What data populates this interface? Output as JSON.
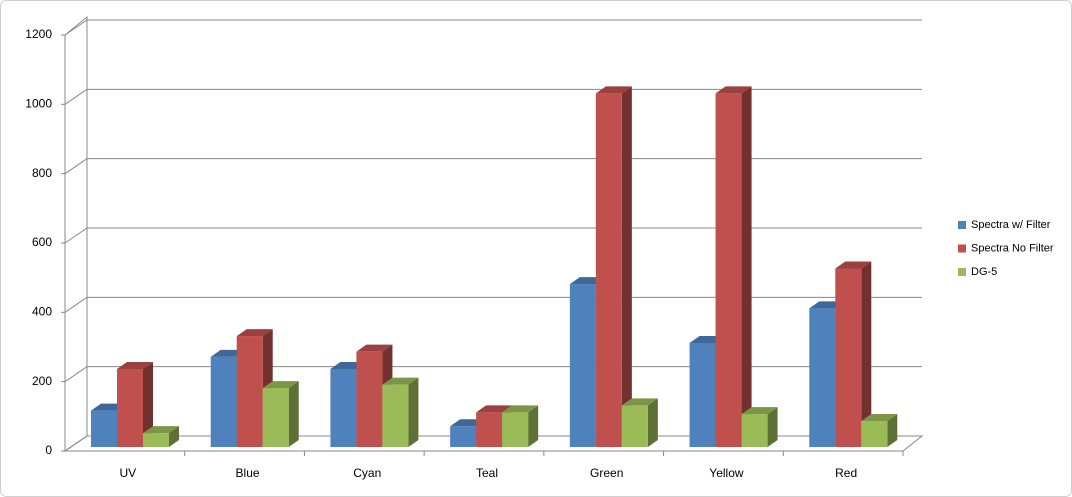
{
  "chart_data": {
    "type": "bar3d",
    "categories": [
      "UV",
      "Blue",
      "Cyan",
      "Teal",
      "Green",
      "Yellow",
      "Red"
    ],
    "series": [
      {
        "name": "Spectra w/ Filter",
        "color": "#4f81bd",
        "values": [
          105,
          260,
          225,
          60,
          470,
          300,
          400
        ]
      },
      {
        "name": "Spectra No Filter",
        "color": "#c0504d",
        "values": [
          225,
          320,
          275,
          100,
          1020,
          1020,
          515
        ]
      },
      {
        "name": "DG-5",
        "color": "#9bbb59",
        "values": [
          40,
          170,
          180,
          100,
          120,
          95,
          75
        ]
      }
    ],
    "ylim": [
      0,
      1200
    ],
    "yticks": [
      0,
      200,
      400,
      600,
      800,
      1000,
      1200
    ],
    "grid": true,
    "legend": "right"
  }
}
